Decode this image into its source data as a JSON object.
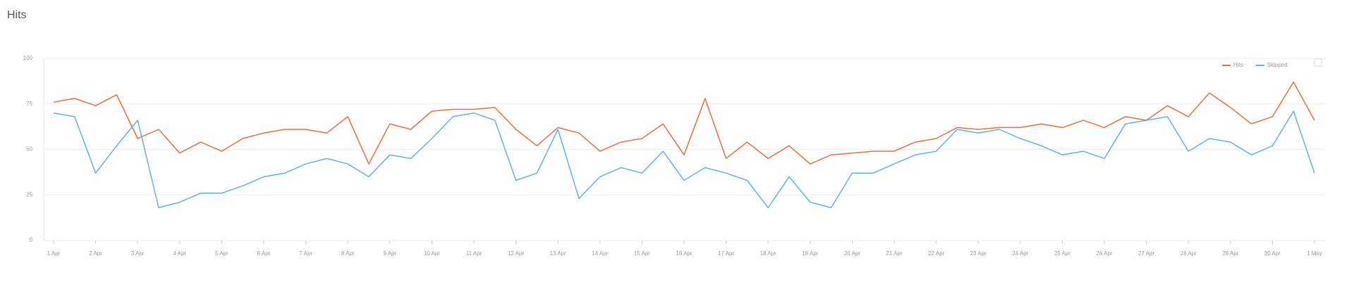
{
  "chart_data": {
    "type": "line",
    "title": "Hits",
    "x": [
      1,
      1.5,
      2,
      2.5,
      3,
      3.5,
      4,
      4.5,
      5,
      5.5,
      6,
      6.5,
      7,
      7.5,
      8,
      8.5,
      9,
      9.5,
      10,
      10.5,
      11,
      11.5,
      12,
      12.5,
      13,
      13.5,
      14,
      14.5,
      15,
      15.5,
      16,
      16.5,
      17,
      17.5,
      18,
      18.5,
      19,
      19.5,
      20,
      20.5,
      21,
      21.5,
      22,
      22.5,
      23,
      23.5,
      24,
      24.5,
      25,
      25.5,
      26,
      26.5,
      27,
      27.5,
      28,
      28.5,
      29,
      29.5,
      30,
      30.5,
      31
    ],
    "series": [
      {
        "name": "Hits",
        "color": "#e8703a",
        "values": [
          76,
          78,
          74,
          80,
          56,
          61,
          48,
          54,
          49,
          56,
          59,
          61,
          61,
          59,
          68,
          42,
          64,
          61,
          71,
          72,
          72,
          73,
          61,
          52,
          62,
          59,
          49,
          54,
          56,
          64,
          47,
          78,
          45,
          54,
          45,
          52,
          42,
          47,
          48,
          49,
          49,
          54,
          56,
          62,
          61,
          62,
          62,
          64,
          62,
          66,
          62,
          68,
          66,
          74,
          68,
          81,
          73,
          64,
          68,
          87,
          66
        ]
      },
      {
        "name": "Skipped",
        "color": "#5ab4e6",
        "values": [
          70,
          68,
          37,
          52,
          66,
          18,
          21,
          26,
          26,
          30,
          35,
          37,
          42,
          45,
          42,
          35,
          47,
          45,
          56,
          68,
          70,
          66,
          33,
          37,
          61,
          23,
          35,
          40,
          37,
          49,
          33,
          40,
          37,
          33,
          18,
          35,
          21,
          18,
          37,
          37,
          42,
          47,
          49,
          61,
          59,
          61,
          56,
          52,
          47,
          49,
          45,
          64,
          66,
          68,
          49,
          56,
          54,
          47,
          52,
          71,
          37
        ]
      }
    ],
    "xlim": [
      1,
      31
    ],
    "xticks": [
      {
        "value": 1,
        "label": "1 Apr"
      },
      {
        "value": 2,
        "label": "2 Apr"
      },
      {
        "value": 3,
        "label": "3 Apr"
      },
      {
        "value": 4,
        "label": "4 Apr"
      },
      {
        "value": 5,
        "label": "5 Apr"
      },
      {
        "value": 6,
        "label": "6 Apr"
      },
      {
        "value": 7,
        "label": "7 Apr"
      },
      {
        "value": 8,
        "label": "8 Apr"
      },
      {
        "value": 9,
        "label": "9 Apr"
      },
      {
        "value": 10,
        "label": "10 Apr"
      },
      {
        "value": 11,
        "label": "11 Apr"
      },
      {
        "value": 12,
        "label": "12 Apr"
      },
      {
        "value": 13,
        "label": "13 Apr"
      },
      {
        "value": 14,
        "label": "14 Apr"
      },
      {
        "value": 15,
        "label": "15 Apr"
      },
      {
        "value": 16,
        "label": "16 Apr"
      },
      {
        "value": 17,
        "label": "17 Apr"
      },
      {
        "value": 18,
        "label": "18 Apr"
      },
      {
        "value": 19,
        "label": "19 Apr"
      },
      {
        "value": 20,
        "label": "20 Apr"
      },
      {
        "value": 21,
        "label": "21 Apr"
      },
      {
        "value": 22,
        "label": "22 Apr"
      },
      {
        "value": 23,
        "label": "23 Apr"
      },
      {
        "value": 24,
        "label": "24 Apr"
      },
      {
        "value": 25,
        "label": "25 Apr"
      },
      {
        "value": 26,
        "label": "26 Apr"
      },
      {
        "value": 27,
        "label": "27 Apr"
      },
      {
        "value": 28,
        "label": "28 Apr"
      },
      {
        "value": 29,
        "label": "29 Apr"
      },
      {
        "value": 30,
        "label": "30 Apr"
      },
      {
        "value": 31,
        "label": "1 May"
      }
    ],
    "ylim": [
      0,
      100
    ],
    "yticks": [
      0,
      25,
      50,
      75,
      100
    ],
    "grid": true,
    "legend": "top-right"
  }
}
